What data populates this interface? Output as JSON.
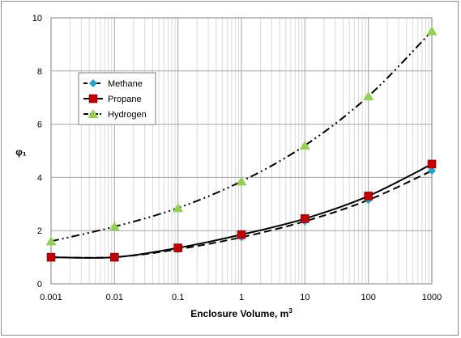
{
  "chart_data": {
    "type": "line",
    "xlabel": "Enclosure Volume, m",
    "xlabel_sup": "3",
    "ylabel": "φ₁",
    "x_scale": "log",
    "xlim": [
      0.001,
      1000
    ],
    "ylim": [
      0,
      10
    ],
    "x_ticks": [
      "0.001",
      "0.01",
      "0.1",
      "1",
      "10",
      "100",
      "1000"
    ],
    "y_ticks": [
      "0",
      "2",
      "4",
      "6",
      "8",
      "10"
    ],
    "grid": true,
    "legend_position": "upper-left",
    "x": [
      0.001,
      0.01,
      0.1,
      1,
      10,
      100,
      1000
    ],
    "series": [
      {
        "name": "Methane",
        "values": [
          1.0,
          1.0,
          1.3,
          1.75,
          2.35,
          3.15,
          4.25
        ],
        "color": "#1fa3d6",
        "marker": "diamond",
        "line": "dash"
      },
      {
        "name": "Propane",
        "values": [
          1.0,
          1.0,
          1.35,
          1.85,
          2.45,
          3.3,
          4.5
        ],
        "color": "#c00000",
        "marker": "square",
        "line": "solid"
      },
      {
        "name": "Hydrogen",
        "values": [
          1.6,
          2.15,
          2.85,
          3.85,
          5.2,
          7.05,
          9.5
        ],
        "color": "#92d050",
        "marker": "triangle",
        "line": "dashdotdot"
      }
    ]
  }
}
